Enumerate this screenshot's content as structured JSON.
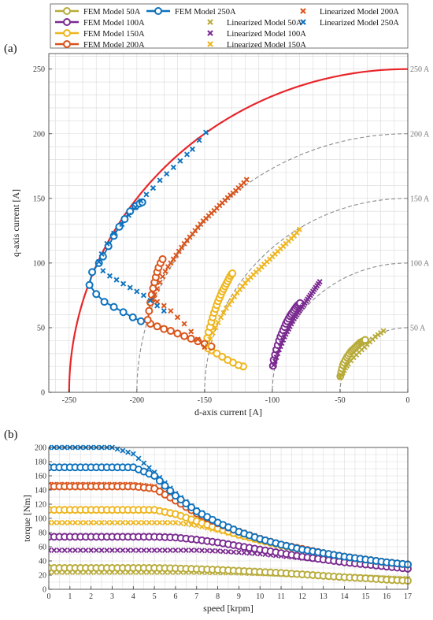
{
  "legend": {
    "entries": [
      {
        "label": "FEM Model 50A",
        "kind": "fem",
        "color": "#b8ab3a"
      },
      {
        "label": "FEM Model 100A",
        "kind": "fem",
        "color": "#7a2a90"
      },
      {
        "label": "FEM Model 150A",
        "kind": "fem",
        "color": "#eeb51d"
      },
      {
        "label": "FEM Model 200A",
        "kind": "fem",
        "color": "#d9541a"
      },
      {
        "label": "FEM Model 250A",
        "kind": "fem",
        "color": "#0e72bd"
      },
      {
        "label": "Linearized Model 50A",
        "kind": "lin",
        "color": "#b8ab3a"
      },
      {
        "label": "Linearized Model 100A",
        "kind": "lin",
        "color": "#7a2a90"
      },
      {
        "label": "Linearized Model 150A",
        "kind": "lin",
        "color": "#eeb51d"
      },
      {
        "label": "Linearized Model 200A",
        "kind": "lin",
        "color": "#d9541a"
      },
      {
        "label": "Linearized Model 250A",
        "kind": "lin",
        "color": "#0e72bd"
      }
    ]
  },
  "chart_data": [
    {
      "panel_label": "(a)",
      "type": "scatter",
      "xlabel": "d-axis current [A]",
      "ylabel": "q-axis current [A]",
      "xlim": [
        -265,
        0
      ],
      "ylim": [
        0,
        262
      ],
      "xticks": [
        -250,
        -200,
        -150,
        -100,
        -50,
        0
      ],
      "yticks": [
        0,
        50,
        100,
        150,
        200,
        250
      ],
      "grid": true,
      "current_circles": [
        {
          "label": "50 A",
          "radius": 50
        },
        {
          "label": "100 A",
          "radius": 100
        },
        {
          "label": "150 A",
          "radius": 150
        },
        {
          "label": "200 A",
          "radius": 200
        },
        {
          "label": "250 A",
          "radius": 250
        }
      ],
      "limit_circle": {
        "radius": 250,
        "color": "#e8262a"
      },
      "series": [
        {
          "name": "FEM Model 50A",
          "kind": "fem",
          "color": "#b8ab3a",
          "x": [
            -49.8,
            -49.2,
            -48.5,
            -47.8,
            -47.0,
            -46.0,
            -45.0,
            -44.0,
            -43.0,
            -42.0,
            -41.0,
            -40.0,
            -39.0,
            -38.0,
            -37.0,
            -36.0,
            -35.0,
            -34.0,
            -33.0,
            -32.0,
            -31.5
          ],
          "y": [
            12.5,
            15.5,
            18.5,
            21.0,
            23.0,
            25.0,
            27.0,
            28.5,
            30.0,
            31.5,
            32.5,
            33.5,
            34.5,
            35.5,
            36.5,
            37.5,
            38.5,
            39.0,
            39.5,
            40.0,
            40.5
          ]
        },
        {
          "name": "FEM Model 100A",
          "kind": "fem",
          "color": "#7a2a90",
          "x": [
            -99.5,
            -99.0,
            -98.0,
            -97.0,
            -96.0,
            -95.0,
            -94.0,
            -93.0,
            -92.0,
            -91.0,
            -90.0,
            -89.0,
            -88.0,
            -87.0,
            -86.0,
            -85.0,
            -84.0,
            -83.0,
            -82.0,
            -81.0,
            -80.0,
            -79.5
          ],
          "y": [
            20.5,
            25.0,
            29.0,
            33.0,
            36.5,
            40.0,
            43.0,
            45.5,
            48.0,
            50.5,
            53.0,
            55.0,
            57.0,
            59.0,
            60.5,
            62.0,
            63.5,
            65.0,
            66.5,
            67.5,
            68.5,
            69.0
          ]
        },
        {
          "name": "FEM Model 150A",
          "kind": "fem",
          "color": "#eeb51d",
          "x": [
            -121.5,
            -125.0,
            -129.0,
            -133.0,
            -137.0,
            -141.0,
            -145.0,
            -147.5,
            -148.5,
            -148.0,
            -147.0,
            -146.0,
            -145.0,
            -144.0,
            -143.0,
            -142.0,
            -141.0,
            -140.0,
            -139.0,
            -138.0,
            -137.0,
            -136.0,
            -135.0,
            -134.0,
            -133.0,
            -132.0,
            -131.0,
            -130.0,
            -129.5
          ],
          "y": [
            20.0,
            21.0,
            23.0,
            25.0,
            27.5,
            30.0,
            32.5,
            34.0,
            38.0,
            42.0,
            46.5,
            50.5,
            54.5,
            58.0,
            61.5,
            64.5,
            67.5,
            70.5,
            73.0,
            75.5,
            78.0,
            80.0,
            82.0,
            84.0,
            86.0,
            88.0,
            90.0,
            91.5,
            92.0
          ]
        },
        {
          "name": "FEM Model 200A",
          "kind": "fem",
          "color": "#d9541a",
          "x": [
            -145.0,
            -150.0,
            -155.0,
            -160.0,
            -165.0,
            -170.0,
            -175.0,
            -180.0,
            -185.0,
            -190.0,
            -192.0,
            -191.0,
            -190.0,
            -189.0,
            -188.0,
            -187.0,
            -186.0,
            -185.0,
            -184.0,
            -182.5,
            -181.0
          ],
          "y": [
            35.5,
            37.5,
            39.5,
            41.5,
            43.5,
            45.5,
            47.5,
            49.0,
            51.0,
            53.0,
            56.0,
            63.0,
            69.5,
            75.5,
            80.5,
            85.0,
            89.0,
            93.0,
            96.5,
            100.0,
            103.0
          ]
        },
        {
          "name": "FEM Model 250A",
          "kind": "fem",
          "color": "#0e72bd",
          "x": [
            -197.0,
            -203.0,
            -210.0,
            -217.0,
            -224.0,
            -230.0,
            -235.0,
            -233.0,
            -228.0,
            -225.0,
            -221.0,
            -217.0,
            -213.0,
            -209.0,
            -205.0,
            -201.0,
            -198.0,
            -196.0
          ],
          "y": [
            55.0,
            58.0,
            62.0,
            66.0,
            70.0,
            76.0,
            83.0,
            93.0,
            100.0,
            105.0,
            113.0,
            121.0,
            128.0,
            134.0,
            140.0,
            144.0,
            146.0,
            147.0
          ]
        },
        {
          "name": "Linearized Model 50A",
          "kind": "lin",
          "color": "#b8ab3a",
          "x": [
            -50.0,
            -49.0,
            -48.0,
            -47.0,
            -46.0,
            -45.0,
            -44.0,
            -42.0,
            -40.0,
            -38.0,
            -36.0,
            -34.0,
            -32.0,
            -30.0,
            -28.0,
            -26.0,
            -24.0,
            -22.0,
            -20.0,
            -18.0
          ],
          "y": [
            11.5,
            13.5,
            15.0,
            17.0,
            19.0,
            20.5,
            22.0,
            24.5,
            27.0,
            29.0,
            31.0,
            33.0,
            35.0,
            37.0,
            39.0,
            41.0,
            43.0,
            44.5,
            46.0,
            47.5
          ]
        },
        {
          "name": "Linearized Model 100A",
          "kind": "lin",
          "color": "#7a2a90",
          "x": [
            -99.0,
            -98.0,
            -97.0,
            -96.0,
            -95.0,
            -94.0,
            -93.0,
            -92.0,
            -91.0,
            -90.0,
            -89.0,
            -88.0,
            -87.0,
            -86.0,
            -85.0,
            -84.0,
            -83.0,
            -82.0,
            -81.0,
            -80.0,
            -79.0,
            -78.0,
            -77.0,
            -76.0,
            -75.0,
            -74.0,
            -73.0,
            -72.0,
            -71.0,
            -70.0,
            -69.0,
            -68.0,
            -67.0,
            -66.0,
            -65.0
          ],
          "y": [
            21.0,
            24.0,
            27.0,
            30.0,
            33.0,
            35.5,
            38.0,
            40.5,
            43.0,
            45.0,
            47.0,
            49.0,
            51.0,
            53.0,
            55.0,
            57.0,
            58.5,
            60.0,
            61.5,
            63.0,
            64.5,
            66.0,
            67.5,
            69.0,
            70.5,
            72.0,
            73.5,
            75.0,
            76.5,
            78.0,
            79.5,
            81.0,
            82.5,
            84.0,
            85.5
          ]
        },
        {
          "name": "Linearized Model 150A",
          "kind": "lin",
          "color": "#eeb51d",
          "x": [
            -148.0,
            -146.0,
            -144.0,
            -142.0,
            -140.0,
            -138.0,
            -136.0,
            -134.0,
            -132.0,
            -130.0,
            -128.0,
            -126.0,
            -124.0,
            -122.0,
            -120.0,
            -118.0,
            -116.0,
            -114.0,
            -112.0,
            -110.0,
            -108.0,
            -106.0,
            -104.0,
            -102.0,
            -100.0,
            -98.0,
            -96.0,
            -94.0,
            -92.0,
            -90.0,
            -88.0,
            -86.0,
            -84.0,
            -82.0,
            -80.0
          ],
          "y": [
            36.0,
            41.0,
            46.0,
            50.0,
            54.0,
            58.0,
            61.5,
            65.0,
            68.0,
            71.0,
            74.0,
            77.0,
            79.5,
            82.0,
            84.5,
            87.0,
            89.0,
            91.0,
            93.0,
            95.0,
            97.0,
            99.0,
            101.0,
            103.0,
            105.0,
            107.0,
            109.0,
            111.0,
            113.0,
            115.0,
            117.0,
            119.0,
            121.0,
            123.5,
            126.0
          ]
        },
        {
          "name": "Linearized Model 200A",
          "kind": "lin",
          "color": "#d9541a",
          "x": [
            -150.0,
            -155.0,
            -160.0,
            -165.0,
            -170.0,
            -175.0,
            -180.0,
            -185.0,
            -188.0,
            -187.0,
            -185.0,
            -183.0,
            -181.0,
            -179.0,
            -177.0,
            -175.0,
            -173.0,
            -171.0,
            -169.0,
            -167.0,
            -165.0,
            -163.0,
            -161.0,
            -159.0,
            -157.0,
            -155.0,
            -153.0,
            -151.0,
            -149.0,
            -147.0,
            -145.0,
            -143.0,
            -141.0,
            -139.0,
            -137.0,
            -135.0,
            -133.0,
            -131.0,
            -129.0,
            -127.0,
            -125.0,
            -123.0,
            -121.0,
            -119.0
          ],
          "y": [
            35.0,
            41.0,
            47.0,
            53.0,
            58.0,
            63.0,
            67.0,
            70.0,
            72.0,
            75.5,
            80.0,
            85.0,
            89.5,
            93.5,
            97.0,
            100.0,
            103.0,
            106.0,
            109.0,
            112.0,
            115.0,
            117.5,
            120.0,
            122.5,
            125.0,
            127.5,
            130.0,
            132.5,
            134.5,
            136.5,
            138.5,
            140.5,
            142.5,
            144.5,
            146.5,
            148.5,
            150.5,
            152.5,
            154.0,
            156.0,
            158.0,
            160.0,
            162.0,
            164.5
          ]
        },
        {
          "name": "Linearized Model 250A",
          "kind": "lin",
          "color": "#0e72bd",
          "x": [
            -180.0,
            -185.0,
            -190.0,
            -195.0,
            -200.0,
            -205.0,
            -210.0,
            -215.0,
            -220.0,
            -225.0,
            -228.0,
            -226.0,
            -222.0,
            -217.0,
            -211.0,
            -206.0,
            -201.0,
            -197.0,
            -193.0,
            -188.0,
            -183.0,
            -178.0,
            -173.0,
            -168.0,
            -163.0,
            -159.0,
            -154.0,
            -149.0
          ],
          "y": [
            63.0,
            67.0,
            71.0,
            75.0,
            78.0,
            81.0,
            84.0,
            87.0,
            90.0,
            94.0,
            101.0,
            107.0,
            115.0,
            123.0,
            130.0,
            137.0,
            143.0,
            148.0,
            153.0,
            158.0,
            164.0,
            169.0,
            174.0,
            179.0,
            184.0,
            188.0,
            195.0,
            201.0
          ]
        }
      ]
    },
    {
      "panel_label": "(b)",
      "type": "line",
      "xlabel": "speed [krpm]",
      "ylabel": "torque [Nm]",
      "xlim": [
        0,
        17
      ],
      "ylim": [
        0,
        200
      ],
      "xticks": [
        0,
        1,
        2,
        3,
        4,
        5,
        6,
        7,
        8,
        9,
        10,
        11,
        12,
        13,
        14,
        15,
        16,
        17
      ],
      "yticks": [
        0,
        20,
        40,
        60,
        80,
        100,
        120,
        140,
        160,
        180,
        200
      ],
      "grid": true,
      "x": [
        0,
        1,
        2,
        3,
        4,
        5,
        6,
        7,
        8,
        9,
        10,
        11,
        12,
        13,
        14,
        15,
        16,
        17
      ],
      "series": [
        {
          "name": "FEM Model 50A",
          "kind": "fem",
          "color": "#b8ab3a",
          "values": [
            30,
            30,
            30,
            30,
            30,
            30,
            29.5,
            28.5,
            27.5,
            26,
            24.5,
            23,
            21,
            19,
            17,
            15.5,
            13.5,
            12
          ]
        },
        {
          "name": "FEM Model 100A",
          "kind": "fem",
          "color": "#7a2a90",
          "values": [
            74,
            74,
            74,
            74,
            74,
            74,
            73,
            70,
            66,
            61,
            56,
            51,
            46,
            42,
            38,
            35,
            32,
            29
          ]
        },
        {
          "name": "FEM Model 150A",
          "kind": "fem",
          "color": "#eeb51d",
          "values": [
            112,
            112,
            112,
            112,
            112,
            112,
            106,
            96,
            86,
            77,
            69,
            62,
            56,
            51,
            46,
            42,
            38,
            35
          ]
        },
        {
          "name": "FEM Model 200A",
          "kind": "fem",
          "color": "#d9541a",
          "values": [
            145,
            145,
            145,
            145,
            145,
            142,
            125,
            107,
            93,
            81,
            71,
            63,
            57,
            51,
            46,
            42,
            38,
            35
          ]
        },
        {
          "name": "FEM Model 250A",
          "kind": "fem",
          "color": "#0e72bd",
          "values": [
            172,
            172,
            172,
            172,
            172,
            160,
            132,
            110,
            94,
            81,
            71,
            63,
            56,
            51,
            46,
            42,
            38,
            35
          ]
        },
        {
          "name": "Linearized Model 50A",
          "kind": "lin",
          "color": "#b8ab3a",
          "values": [
            24,
            24,
            24,
            24,
            24,
            24,
            24,
            24,
            23.5,
            23,
            22,
            21,
            20,
            19,
            18,
            17,
            16,
            15
          ]
        },
        {
          "name": "Linearized Model 100A",
          "kind": "lin",
          "color": "#7a2a90",
          "values": [
            55,
            55,
            55,
            55,
            55,
            55,
            55,
            55,
            54,
            52,
            50,
            47,
            44,
            41,
            38,
            35,
            32,
            29
          ]
        },
        {
          "name": "Linearized Model 150A",
          "kind": "lin",
          "color": "#eeb51d",
          "values": [
            94,
            94,
            94,
            94,
            94,
            94,
            94,
            90,
            83,
            75,
            68,
            62,
            56,
            51,
            46,
            42,
            38,
            35
          ]
        },
        {
          "name": "Linearized Model 200A",
          "kind": "lin",
          "color": "#d9541a",
          "values": [
            148,
            148,
            148,
            148,
            148,
            145,
            128,
            110,
            95,
            83,
            73,
            64,
            57,
            51,
            46,
            42,
            38,
            35
          ]
        },
        {
          "name": "Linearized Model 250A",
          "kind": "lin",
          "color": "#0e72bd",
          "values": [
            200,
            200,
            200,
            200,
            191,
            165,
            135,
            112,
            95,
            82,
            72,
            64,
            57,
            51,
            46,
            42,
            38,
            35
          ]
        }
      ]
    }
  ]
}
